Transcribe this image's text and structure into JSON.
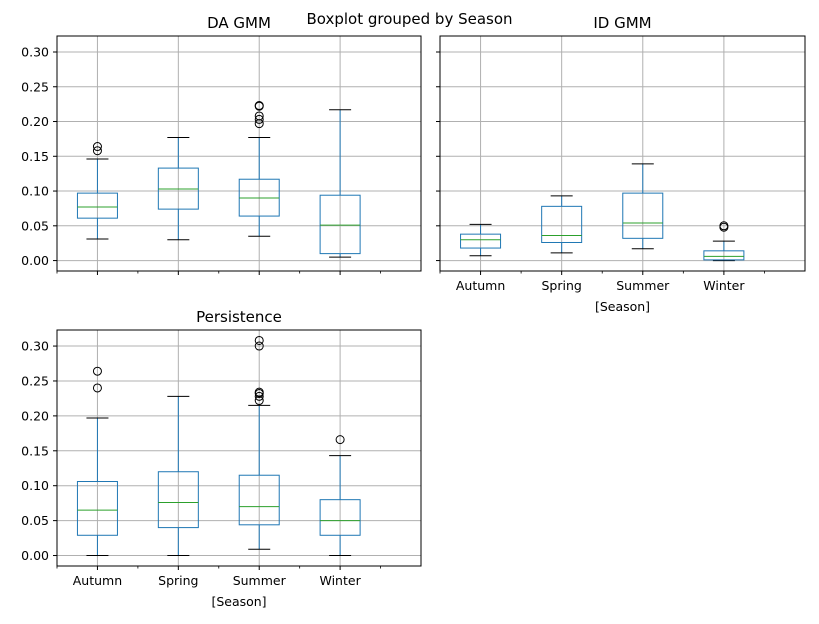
{
  "figure": {
    "suptitle": "Boxplot grouped by Season"
  },
  "chart_data": [
    {
      "type": "box",
      "title": "DA GMM",
      "xlabel": "",
      "ylabel": "",
      "categories": [
        "Autumn",
        "Spring",
        "Summer",
        "Winter"
      ],
      "show_xticklabels": false,
      "ylim": [
        -0.015,
        0.323
      ],
      "yticks": [
        "0.00",
        "0.05",
        "0.10",
        "0.15",
        "0.20",
        "0.25",
        "0.30"
      ],
      "grid": true,
      "boxes": [
        {
          "category": "Autumn",
          "whisker_low": 0.031,
          "q1": 0.061,
          "median": 0.077,
          "q3": 0.097,
          "whisker_high": 0.146,
          "outliers": [
            0.158,
            0.164
          ]
        },
        {
          "category": "Spring",
          "whisker_low": 0.03,
          "q1": 0.074,
          "median": 0.103,
          "q3": 0.133,
          "whisker_high": 0.177,
          "outliers": []
        },
        {
          "category": "Summer",
          "whisker_low": 0.035,
          "q1": 0.064,
          "median": 0.09,
          "q3": 0.117,
          "whisker_high": 0.177,
          "outliers": [
            0.197,
            0.203,
            0.208,
            0.222,
            0.223
          ]
        },
        {
          "category": "Winter",
          "whisker_low": 0.005,
          "q1": 0.01,
          "median": 0.051,
          "q3": 0.094,
          "whisker_high": 0.217,
          "outliers": []
        }
      ]
    },
    {
      "type": "box",
      "title": "ID GMM",
      "xlabel": "[Season]",
      "ylabel": "",
      "categories": [
        "Autumn",
        "Spring",
        "Summer",
        "Winter"
      ],
      "show_xticklabels": true,
      "show_yticklabels": false,
      "ylim": [
        -0.015,
        0.323
      ],
      "yticks": [
        "0.00",
        "0.05",
        "0.10",
        "0.15",
        "0.20",
        "0.25",
        "0.30"
      ],
      "grid": true,
      "boxes": [
        {
          "category": "Autumn",
          "whisker_low": 0.007,
          "q1": 0.018,
          "median": 0.03,
          "q3": 0.038,
          "whisker_high": 0.052,
          "outliers": []
        },
        {
          "category": "Spring",
          "whisker_low": 0.011,
          "q1": 0.026,
          "median": 0.036,
          "q3": 0.078,
          "whisker_high": 0.093,
          "outliers": []
        },
        {
          "category": "Summer",
          "whisker_low": 0.017,
          "q1": 0.032,
          "median": 0.054,
          "q3": 0.097,
          "whisker_high": 0.139,
          "outliers": []
        },
        {
          "category": "Winter",
          "whisker_low": 0.0,
          "q1": 0.001,
          "median": 0.006,
          "q3": 0.014,
          "whisker_high": 0.028,
          "outliers": [
            0.048,
            0.05
          ]
        }
      ]
    },
    {
      "type": "box",
      "title": "Persistence",
      "xlabel": "[Season]",
      "ylabel": "",
      "categories": [
        "Autumn",
        "Spring",
        "Summer",
        "Winter"
      ],
      "show_xticklabels": true,
      "ylim": [
        -0.015,
        0.323
      ],
      "yticks": [
        "0.00",
        "0.05",
        "0.10",
        "0.15",
        "0.20",
        "0.25",
        "0.30"
      ],
      "grid": true,
      "boxes": [
        {
          "category": "Autumn",
          "whisker_low": 0.0,
          "q1": 0.029,
          "median": 0.065,
          "q3": 0.106,
          "whisker_high": 0.197,
          "outliers": [
            0.24,
            0.264
          ]
        },
        {
          "category": "Spring",
          "whisker_low": 0.0,
          "q1": 0.04,
          "median": 0.076,
          "q3": 0.12,
          "whisker_high": 0.228,
          "outliers": []
        },
        {
          "category": "Summer",
          "whisker_low": 0.009,
          "q1": 0.044,
          "median": 0.07,
          "q3": 0.115,
          "whisker_high": 0.215,
          "outliers": [
            0.222,
            0.228,
            0.232,
            0.234,
            0.3,
            0.308
          ]
        },
        {
          "category": "Winter",
          "whisker_low": 0.0,
          "q1": 0.029,
          "median": 0.05,
          "q3": 0.08,
          "whisker_high": 0.143,
          "outliers": [
            0.166
          ]
        }
      ]
    }
  ],
  "colors": {
    "box": "#1f77b4",
    "median": "#2ca02c",
    "grid": "#b0b0b0",
    "axis": "#000000"
  }
}
